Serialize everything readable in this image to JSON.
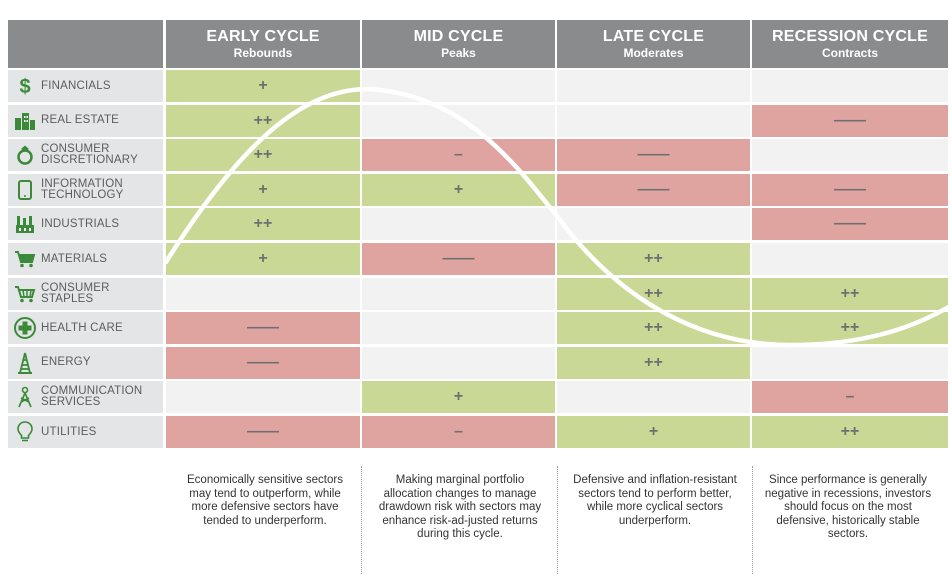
{
  "columns": [
    {
      "title": "EARLY CYCLE",
      "subtitle": "Rebounds"
    },
    {
      "title": "MID CYCLE",
      "subtitle": "Peaks"
    },
    {
      "title": "LATE CYCLE",
      "subtitle": "Moderates"
    },
    {
      "title": "RECESSION CYCLE",
      "subtitle": "Contracts"
    }
  ],
  "sectors": [
    {
      "label": "FINANCIALS",
      "icon": "dollar-icon",
      "cells": [
        "+",
        "",
        "",
        ""
      ],
      "states": [
        "pos",
        "neu",
        "neu",
        "neu"
      ]
    },
    {
      "label": "REAL ESTATE",
      "icon": "buildings-icon",
      "cells": [
        "++",
        "",
        "",
        "——"
      ],
      "states": [
        "pos",
        "neu",
        "neu",
        "neg"
      ]
    },
    {
      "label": "CONSUMER\nDISCRETIONARY",
      "icon": "ring-icon",
      "cells": [
        "++",
        "–",
        "——",
        ""
      ],
      "states": [
        "pos",
        "neg",
        "neg",
        "neu"
      ]
    },
    {
      "label": "INFORMATION\nTECHNOLOGY",
      "icon": "phone-icon",
      "cells": [
        "+",
        "+",
        "——",
        "——"
      ],
      "states": [
        "pos",
        "pos",
        "neg",
        "neg"
      ]
    },
    {
      "label": "INDUSTRIALS",
      "icon": "factory-icon",
      "cells": [
        "++",
        "",
        "",
        "——"
      ],
      "states": [
        "pos",
        "neu",
        "neu",
        "neg"
      ]
    },
    {
      "label": "MATERIALS",
      "icon": "cart-icon",
      "cells": [
        "+",
        "——",
        "++",
        ""
      ],
      "states": [
        "pos",
        "neg",
        "pos",
        "neu"
      ]
    },
    {
      "label": "CONSUMER\nSTAPLES",
      "icon": "basket-icon",
      "cells": [
        "",
        "",
        "++",
        "++"
      ],
      "states": [
        "neu",
        "neu",
        "pos",
        "pos"
      ]
    },
    {
      "label": "HEALTH CARE",
      "icon": "medical-cross-icon",
      "cells": [
        "——",
        "",
        "++",
        "++"
      ],
      "states": [
        "neg",
        "neu",
        "pos",
        "pos"
      ]
    },
    {
      "label": "ENERGY",
      "icon": "oil-rig-icon",
      "cells": [
        "——",
        "",
        "++",
        ""
      ],
      "states": [
        "neg",
        "neu",
        "pos",
        "neu"
      ]
    },
    {
      "label": "COMMUNICATION\nSERVICES",
      "icon": "tower-icon",
      "cells": [
        "",
        "+",
        "",
        "–"
      ],
      "states": [
        "neu",
        "pos",
        "neu",
        "neg"
      ]
    },
    {
      "label": "UTILITIES",
      "icon": "lightbulb-icon",
      "cells": [
        "——",
        "–",
        "+",
        "++"
      ],
      "states": [
        "neg",
        "neg",
        "pos",
        "pos"
      ]
    }
  ],
  "descriptions": [
    "Economically sensitive sectors may tend to outperform, while more defensive sectors have tended to underperform.",
    "Making marginal portfolio allocation changes to manage drawdown risk with sectors may enhance risk-ad-justed returns during this cycle.",
    "Defensive and inflation-resistant sectors tend to perform better, while more cyclical sectors underperform.",
    "Since performance is generally negative in recessions, investors should focus on the most defensive, historically stable sectors."
  ],
  "colors": {
    "header": "#8a8b8d",
    "outperform": "#c9d894",
    "underperform": "#dfa3a0",
    "neutral": "#f2f2f2",
    "sector_bg": "#e4e5e6",
    "icon": "#3a8a3a"
  }
}
